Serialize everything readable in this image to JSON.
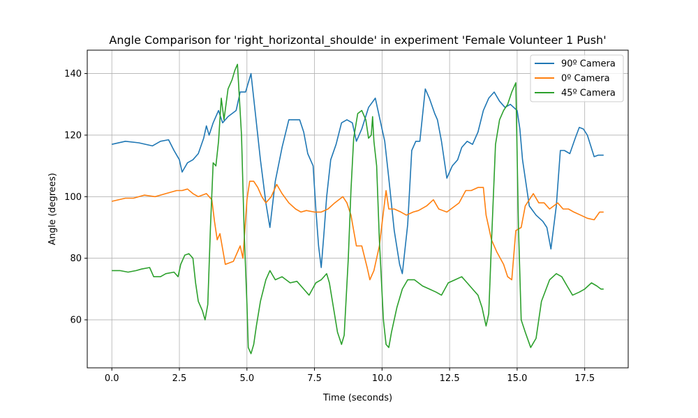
{
  "chart_data": {
    "type": "line",
    "title": "Angle Comparison for 'right_horizontal_shoulde' in experiment 'Female Volunteer 1 Push'",
    "xlabel": "Time (seconds)",
    "ylabel": "Angle (degrees)",
    "xlim": [
      -0.91,
      19.11
    ],
    "ylim": [
      44.4,
      147.6
    ],
    "grid": true,
    "legend_position": "top-right",
    "x_ticks": [
      0.0,
      2.5,
      5.0,
      7.5,
      10.0,
      12.5,
      15.0,
      17.5
    ],
    "x_tick_labels": [
      "0.0",
      "2.5",
      "5.0",
      "7.5",
      "10.0",
      "12.5",
      "15.0",
      "17.5"
    ],
    "y_ticks": [
      60,
      80,
      100,
      120,
      140
    ],
    "y_tick_labels": [
      "60",
      "80",
      "100",
      "120",
      "140"
    ],
    "series": [
      {
        "name": "90º Camera",
        "color": "#1f77b4",
        "points": [
          [
            0.0,
            117
          ],
          [
            0.5,
            118
          ],
          [
            1.0,
            117.5
          ],
          [
            1.5,
            116.5
          ],
          [
            1.8,
            118
          ],
          [
            2.1,
            118.5
          ],
          [
            2.3,
            115
          ],
          [
            2.5,
            112
          ],
          [
            2.6,
            108
          ],
          [
            2.8,
            111
          ],
          [
            3.0,
            112
          ],
          [
            3.2,
            114
          ],
          [
            3.4,
            119
          ],
          [
            3.5,
            123
          ],
          [
            3.6,
            120
          ],
          [
            3.75,
            124
          ],
          [
            3.95,
            128
          ],
          [
            4.1,
            124
          ],
          [
            4.3,
            126
          ],
          [
            4.45,
            127
          ],
          [
            4.6,
            128
          ],
          [
            4.75,
            134
          ],
          [
            4.95,
            134
          ],
          [
            5.15,
            140
          ],
          [
            5.3,
            128
          ],
          [
            5.5,
            112
          ],
          [
            5.7,
            98
          ],
          [
            5.85,
            90
          ],
          [
            6.05,
            105
          ],
          [
            6.3,
            116
          ],
          [
            6.55,
            125
          ],
          [
            6.95,
            125
          ],
          [
            7.1,
            121
          ],
          [
            7.25,
            114
          ],
          [
            7.45,
            110
          ],
          [
            7.55,
            96
          ],
          [
            7.65,
            84
          ],
          [
            7.75,
            77
          ],
          [
            7.85,
            88
          ],
          [
            7.95,
            100
          ],
          [
            8.1,
            112
          ],
          [
            8.3,
            117
          ],
          [
            8.5,
            124
          ],
          [
            8.7,
            125
          ],
          [
            8.9,
            124
          ],
          [
            9.05,
            118
          ],
          [
            9.25,
            122
          ],
          [
            9.5,
            129
          ],
          [
            9.75,
            132
          ],
          [
            10.0,
            122
          ],
          [
            10.1,
            118
          ],
          [
            10.25,
            106
          ],
          [
            10.45,
            89
          ],
          [
            10.65,
            78
          ],
          [
            10.75,
            75
          ],
          [
            10.95,
            91
          ],
          [
            11.1,
            115
          ],
          [
            11.25,
            118
          ],
          [
            11.4,
            118
          ],
          [
            11.6,
            135
          ],
          [
            11.75,
            132
          ],
          [
            11.95,
            127
          ],
          [
            12.05,
            125
          ],
          [
            12.2,
            118
          ],
          [
            12.4,
            106
          ],
          [
            12.6,
            110
          ],
          [
            12.8,
            112
          ],
          [
            12.95,
            116
          ],
          [
            13.15,
            118
          ],
          [
            13.35,
            117
          ],
          [
            13.55,
            121
          ],
          [
            13.75,
            128
          ],
          [
            13.95,
            132
          ],
          [
            14.15,
            134
          ],
          [
            14.35,
            131
          ],
          [
            14.55,
            129
          ],
          [
            14.75,
            130
          ],
          [
            15.0,
            128
          ],
          [
            15.1,
            122
          ],
          [
            15.2,
            112
          ],
          [
            15.45,
            97
          ],
          [
            15.7,
            94
          ],
          [
            15.95,
            92
          ],
          [
            16.1,
            90
          ],
          [
            16.25,
            83
          ],
          [
            16.45,
            97
          ],
          [
            16.6,
            115
          ],
          [
            16.75,
            115
          ],
          [
            16.95,
            114
          ],
          [
            17.15,
            119
          ],
          [
            17.3,
            122.5
          ],
          [
            17.45,
            122
          ],
          [
            17.6,
            120
          ],
          [
            17.85,
            113
          ],
          [
            18.0,
            113.5
          ],
          [
            18.1,
            113.5
          ],
          [
            18.2,
            113.5
          ]
        ]
      },
      {
        "name": "0º Camera",
        "color": "#ff7f0e",
        "points": [
          [
            0.0,
            98.5
          ],
          [
            0.5,
            99.5
          ],
          [
            0.8,
            99.5
          ],
          [
            1.2,
            100.5
          ],
          [
            1.6,
            100
          ],
          [
            2.0,
            101
          ],
          [
            2.4,
            102
          ],
          [
            2.6,
            102
          ],
          [
            2.8,
            102.5
          ],
          [
            3.0,
            101
          ],
          [
            3.2,
            100
          ],
          [
            3.5,
            101
          ],
          [
            3.7,
            99
          ],
          [
            3.8,
            92
          ],
          [
            3.9,
            86
          ],
          [
            4.0,
            88
          ],
          [
            4.2,
            78
          ],
          [
            4.5,
            79
          ],
          [
            4.75,
            84
          ],
          [
            4.85,
            80
          ],
          [
            5.0,
            99
          ],
          [
            5.1,
            105
          ],
          [
            5.25,
            105
          ],
          [
            5.4,
            103
          ],
          [
            5.55,
            100
          ],
          [
            5.7,
            98
          ],
          [
            5.9,
            100
          ],
          [
            6.1,
            104
          ],
          [
            6.3,
            101
          ],
          [
            6.55,
            98
          ],
          [
            6.8,
            96
          ],
          [
            7.0,
            95
          ],
          [
            7.2,
            95.5
          ],
          [
            7.5,
            95
          ],
          [
            7.75,
            95
          ],
          [
            8.0,
            96
          ],
          [
            8.25,
            98
          ],
          [
            8.55,
            100
          ],
          [
            8.7,
            98
          ],
          [
            8.85,
            94
          ],
          [
            9.05,
            84
          ],
          [
            9.25,
            84
          ],
          [
            9.45,
            77
          ],
          [
            9.55,
            73
          ],
          [
            9.7,
            76
          ],
          [
            9.9,
            84
          ],
          [
            10.05,
            95
          ],
          [
            10.15,
            102
          ],
          [
            10.25,
            96
          ],
          [
            10.45,
            96
          ],
          [
            10.7,
            95
          ],
          [
            10.9,
            94
          ],
          [
            11.15,
            95
          ],
          [
            11.35,
            95.5
          ],
          [
            11.65,
            97
          ],
          [
            11.9,
            99
          ],
          [
            12.1,
            96
          ],
          [
            12.4,
            95
          ],
          [
            12.7,
            97
          ],
          [
            12.85,
            98
          ],
          [
            13.1,
            102
          ],
          [
            13.3,
            102
          ],
          [
            13.55,
            103
          ],
          [
            13.75,
            103
          ],
          [
            13.85,
            94
          ],
          [
            14.05,
            86
          ],
          [
            14.25,
            82
          ],
          [
            14.5,
            78
          ],
          [
            14.65,
            74
          ],
          [
            14.8,
            73
          ],
          [
            14.95,
            89
          ],
          [
            15.15,
            90
          ],
          [
            15.3,
            97
          ],
          [
            15.6,
            101
          ],
          [
            15.8,
            98
          ],
          [
            16.0,
            98
          ],
          [
            16.2,
            96
          ],
          [
            16.5,
            98
          ],
          [
            16.7,
            96
          ],
          [
            16.9,
            96
          ],
          [
            17.1,
            95
          ],
          [
            17.35,
            94
          ],
          [
            17.6,
            93
          ],
          [
            17.85,
            92.5
          ],
          [
            18.05,
            95
          ],
          [
            18.2,
            95
          ]
        ]
      },
      {
        "name": "45º Camera",
        "color": "#2ca02c",
        "points": [
          [
            0.0,
            76
          ],
          [
            0.3,
            76
          ],
          [
            0.6,
            75.5
          ],
          [
            0.9,
            76
          ],
          [
            1.1,
            76.5
          ],
          [
            1.4,
            77
          ],
          [
            1.55,
            74
          ],
          [
            1.8,
            74
          ],
          [
            2.0,
            75
          ],
          [
            2.3,
            75.5
          ],
          [
            2.45,
            74
          ],
          [
            2.55,
            78
          ],
          [
            2.7,
            81
          ],
          [
            2.85,
            81.5
          ],
          [
            3.0,
            80
          ],
          [
            3.1,
            72
          ],
          [
            3.2,
            66
          ],
          [
            3.35,
            63
          ],
          [
            3.45,
            60
          ],
          [
            3.55,
            65
          ],
          [
            3.65,
            90
          ],
          [
            3.75,
            111
          ],
          [
            3.85,
            110
          ],
          [
            3.95,
            118
          ],
          [
            4.05,
            132
          ],
          [
            4.15,
            125
          ],
          [
            4.3,
            135
          ],
          [
            4.45,
            138
          ],
          [
            4.55,
            141
          ],
          [
            4.65,
            143
          ],
          [
            4.8,
            120
          ],
          [
            4.9,
            88
          ],
          [
            5.0,
            65
          ],
          [
            5.05,
            51
          ],
          [
            5.15,
            49
          ],
          [
            5.25,
            52
          ],
          [
            5.35,
            58
          ],
          [
            5.5,
            66
          ],
          [
            5.7,
            73
          ],
          [
            5.85,
            76
          ],
          [
            6.05,
            73
          ],
          [
            6.3,
            74
          ],
          [
            6.6,
            72
          ],
          [
            6.85,
            72.5
          ],
          [
            7.1,
            70
          ],
          [
            7.3,
            68
          ],
          [
            7.55,
            72
          ],
          [
            7.75,
            73
          ],
          [
            7.95,
            75
          ],
          [
            8.05,
            72
          ],
          [
            8.2,
            64
          ],
          [
            8.35,
            56
          ],
          [
            8.5,
            52
          ],
          [
            8.6,
            55
          ],
          [
            8.75,
            80
          ],
          [
            8.85,
            102
          ],
          [
            8.95,
            119
          ],
          [
            9.1,
            127
          ],
          [
            9.25,
            128
          ],
          [
            9.4,
            125
          ],
          [
            9.5,
            119
          ],
          [
            9.6,
            120
          ],
          [
            9.65,
            126
          ],
          [
            9.7,
            118
          ],
          [
            9.8,
            110
          ],
          [
            9.9,
            86
          ],
          [
            10.05,
            60
          ],
          [
            10.15,
            52
          ],
          [
            10.25,
            51
          ],
          [
            10.35,
            56
          ],
          [
            10.55,
            64
          ],
          [
            10.75,
            70
          ],
          [
            10.95,
            73
          ],
          [
            11.2,
            73
          ],
          [
            11.5,
            71
          ],
          [
            11.75,
            70
          ],
          [
            12.0,
            69
          ],
          [
            12.2,
            68
          ],
          [
            12.45,
            72
          ],
          [
            12.7,
            73
          ],
          [
            12.95,
            74
          ],
          [
            13.15,
            72
          ],
          [
            13.35,
            70
          ],
          [
            13.55,
            68
          ],
          [
            13.7,
            64
          ],
          [
            13.85,
            58
          ],
          [
            13.95,
            62
          ],
          [
            14.05,
            85
          ],
          [
            14.2,
            117
          ],
          [
            14.35,
            125
          ],
          [
            14.5,
            128
          ],
          [
            14.65,
            130
          ],
          [
            14.8,
            134
          ],
          [
            14.95,
            137
          ],
          [
            15.05,
            90
          ],
          [
            15.15,
            60
          ],
          [
            15.3,
            56
          ],
          [
            15.5,
            51
          ],
          [
            15.7,
            54
          ],
          [
            15.9,
            66
          ],
          [
            16.2,
            73
          ],
          [
            16.45,
            75
          ],
          [
            16.65,
            74
          ],
          [
            16.85,
            71
          ],
          [
            17.05,
            68
          ],
          [
            17.3,
            69
          ],
          [
            17.5,
            70
          ],
          [
            17.75,
            72
          ],
          [
            17.95,
            71
          ],
          [
            18.1,
            70
          ],
          [
            18.2,
            70
          ]
        ]
      }
    ]
  }
}
